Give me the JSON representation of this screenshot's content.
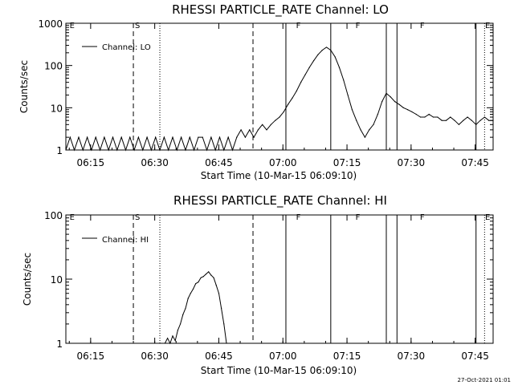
{
  "chart_data": [
    {
      "type": "line",
      "title": "RHESSI PARTICLE_RATE Channel: LO",
      "xlabel": "Start Time (10-Mar-15 06:09:10)",
      "ylabel": "Counts/sec",
      "y_scale": "log",
      "ylim": [
        1,
        1000
      ],
      "y_ticks": [
        "1",
        "10",
        "100",
        "1000"
      ],
      "x_unit": "minutes after 06:09:10",
      "xlim": [
        0,
        100
      ],
      "x_ticks": [
        "06:15",
        "06:30",
        "06:45",
        "07:00",
        "07:15",
        "07:30",
        "07:45"
      ],
      "legend": "Channel: LO",
      "flags": [
        {
          "label": "E",
          "x": 0.5
        },
        {
          "label": "S",
          "x": 15.8
        },
        {
          "label": "F",
          "x": 53.5
        },
        {
          "label": "F",
          "x": 67.4
        },
        {
          "label": "F",
          "x": 82.5
        },
        {
          "label": "E",
          "x": 105.5
        }
      ],
      "series": [
        {
          "name": "Channel: LO",
          "x": [
            0,
            1,
            2,
            3,
            4,
            5,
            6,
            7,
            8,
            9,
            10,
            11,
            12,
            13,
            14,
            15,
            16,
            17,
            18,
            19,
            20,
            21,
            22,
            23,
            24,
            25,
            26,
            27,
            28,
            29,
            30,
            31,
            32,
            33,
            34,
            35,
            36,
            37,
            38,
            39,
            40,
            41,
            42,
            43,
            44,
            45,
            46,
            47,
            48,
            49,
            50,
            51,
            52,
            53,
            54,
            55,
            56,
            57,
            58,
            59,
            60,
            61,
            62,
            63,
            64,
            65,
            66,
            67,
            68,
            69,
            70,
            71,
            72,
            73,
            74,
            75,
            76,
            77,
            78,
            79,
            80,
            81,
            82,
            83,
            84,
            85,
            86,
            87,
            88,
            89,
            90,
            91,
            92,
            93,
            94,
            95,
            96,
            97,
            98,
            99,
            100
          ],
          "values": [
            1,
            2,
            1,
            2,
            1,
            2,
            1,
            2,
            1,
            2,
            1,
            2,
            1,
            2,
            1,
            2,
            1,
            2,
            1,
            2,
            1,
            2,
            1,
            2,
            1,
            2,
            1,
            2,
            1,
            2,
            1,
            2,
            2,
            1,
            2,
            1,
            2,
            1,
            2,
            1,
            2,
            3,
            2,
            3,
            2,
            3,
            4,
            3,
            4,
            5,
            6,
            8,
            12,
            17,
            25,
            40,
            60,
            90,
            130,
            180,
            230,
            270,
            230,
            160,
            90,
            45,
            20,
            9,
            5,
            3,
            2,
            3,
            4,
            7,
            14,
            22,
            18,
            14,
            12,
            10,
            9,
            8,
            7,
            6,
            6,
            7,
            6,
            6,
            5,
            5,
            6,
            5,
            4,
            5,
            6,
            5,
            4,
            5,
            6,
            5,
            5
          ]
        }
      ]
    },
    {
      "type": "line",
      "title": "RHESSI PARTICLE_RATE Channel: HI",
      "xlabel": "Start Time (10-Mar-15 06:09:10)",
      "ylabel": "Counts/sec",
      "y_scale": "log",
      "ylim": [
        1,
        100
      ],
      "y_ticks": [
        "1",
        "10",
        "100"
      ],
      "x_unit": "minutes after 06:09:10",
      "xlim": [
        0,
        100
      ],
      "x_ticks": [
        "06:15",
        "06:30",
        "06:45",
        "07:00",
        "07:15",
        "07:30",
        "07:45"
      ],
      "legend": "Channel: HI",
      "flags": [
        {
          "label": "E",
          "x": 0.5
        },
        {
          "label": "S",
          "x": 15.8
        },
        {
          "label": "F",
          "x": 53.5
        },
        {
          "label": "F",
          "x": 67.4
        },
        {
          "label": "F",
          "x": 82.5
        },
        {
          "label": "E",
          "x": 105.5
        }
      ],
      "series": [
        {
          "name": "Channel: HI",
          "x": [
            23.2,
            23.8,
            24.4,
            25.0,
            25.6,
            26.2,
            26.8,
            27.4,
            28.0,
            28.6,
            29.2,
            29.8,
            30.4,
            31.0,
            31.6,
            32.2,
            32.8,
            33.4,
            34.0,
            34.6,
            35.2,
            35.8,
            36.4,
            37.0,
            37.6
          ],
          "values": [
            1.0,
            1.2,
            1.0,
            1.3,
            1.1,
            1.6,
            2.0,
            2.8,
            3.5,
            5.0,
            6.0,
            7.0,
            8.5,
            9.0,
            10.5,
            11.0,
            12.0,
            13.0,
            11.5,
            10.5,
            8.0,
            6.0,
            3.5,
            2.0,
            1.0
          ]
        }
      ]
    }
  ],
  "stamp": "27-Oct-2021 01:01"
}
